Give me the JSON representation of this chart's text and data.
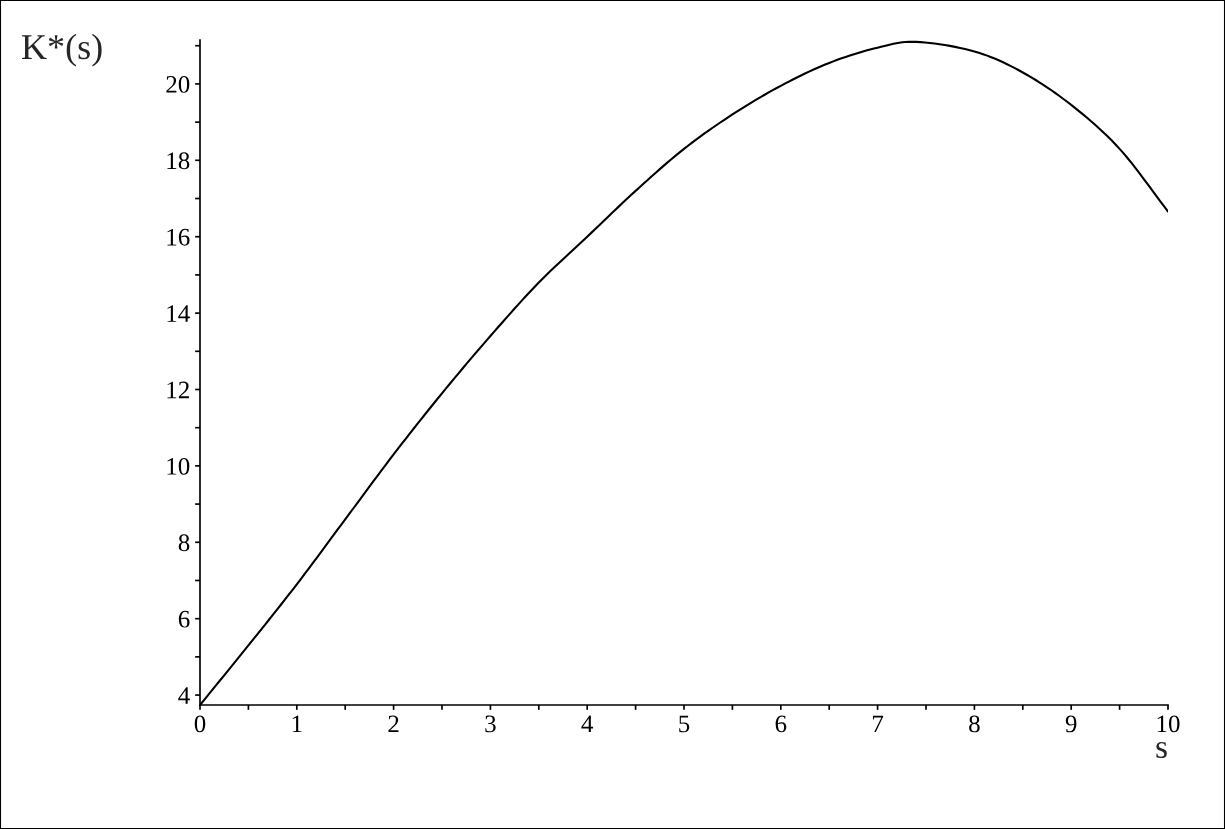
{
  "chart_data": {
    "type": "line",
    "xlabel": "s",
    "ylabel": "K*(s)",
    "x": [
      0,
      0.5,
      1,
      1.5,
      2,
      2.5,
      3,
      3.5,
      4,
      4.5,
      5,
      5.5,
      6,
      6.5,
      7,
      7.4,
      8,
      8.5,
      9,
      9.5,
      10
    ],
    "series": [
      {
        "color": "#000000",
        "values": [
          3.74,
          5.3,
          6.9,
          8.6,
          10.3,
          11.9,
          13.4,
          14.8,
          16.0,
          17.2,
          18.3,
          19.2,
          19.95,
          20.55,
          20.95,
          21.1,
          20.85,
          20.3,
          19.45,
          18.3,
          16.66
        ]
      }
    ],
    "xlim": [
      0,
      10
    ],
    "ylim": [
      3.74,
      21.15
    ],
    "xticks": [
      0,
      {
        "value": 0.5,
        "label": null
      },
      1,
      {
        "value": 1.5,
        "label": null
      },
      2,
      {
        "value": 2.5,
        "label": null
      },
      3,
      {
        "value": 3.5,
        "label": null
      },
      4,
      {
        "value": 4.5,
        "label": null
      },
      5,
      {
        "value": 5.5,
        "label": null
      },
      6,
      {
        "value": 6.5,
        "label": null
      },
      7,
      {
        "value": 7.5,
        "label": null
      },
      8,
      {
        "value": 8.5,
        "label": null
      },
      9,
      {
        "value": 9.5,
        "label": null
      },
      10
    ],
    "yticks": [
      4,
      {
        "value": 5,
        "label": null
      },
      6,
      {
        "value": 7,
        "label": null
      },
      8,
      {
        "value": 9,
        "label": null
      },
      10,
      {
        "value": 11,
        "label": null
      },
      12,
      {
        "value": 13,
        "label": null
      },
      14,
      {
        "value": 15,
        "label": null
      },
      16,
      {
        "value": 17,
        "label": null
      },
      18,
      {
        "value": 19,
        "label": null
      },
      20,
      {
        "value": 21,
        "label": null
      }
    ],
    "grid": false,
    "legend": false,
    "marker": "none",
    "line_style": "solid"
  }
}
